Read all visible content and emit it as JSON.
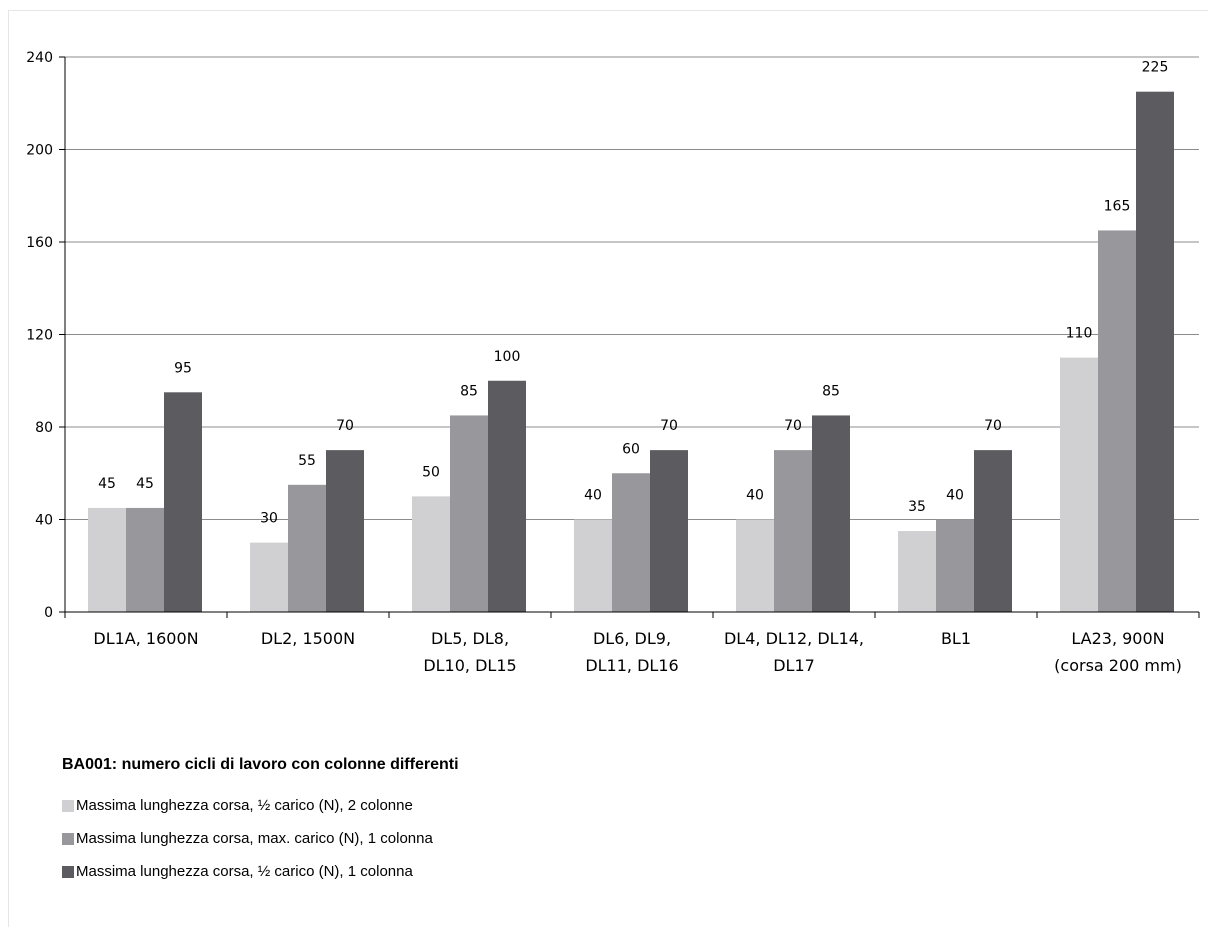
{
  "chart_data": {
    "type": "bar",
    "title": "BA001: numero cicli di lavoro con colonne differenti",
    "categories": [
      [
        "DL1A, 1600N"
      ],
      [
        "DL2, 1500N"
      ],
      [
        "DL5, DL8,",
        "DL10, DL15"
      ],
      [
        "DL6, DL9,",
        "DL11, DL16"
      ],
      [
        "DL4, DL12, DL14,",
        "DL17"
      ],
      [
        "BL1"
      ],
      [
        "LA23, 900N",
        "(corsa 200 mm)"
      ]
    ],
    "series": [
      {
        "name": "Massima lunghezza corsa, ½ carico (N), 2 colonne",
        "color": "#d0d0d2",
        "values": [
          45,
          30,
          50,
          40,
          40,
          35,
          110
        ]
      },
      {
        "name": "Massima lunghezza corsa, max. carico (N), 1 colonna",
        "color": "#98979c",
        "values": [
          45,
          55,
          85,
          60,
          70,
          40,
          165
        ]
      },
      {
        "name": "Massima lunghezza corsa, ½ carico (N), 1 colonna",
        "color": "#5c5b60",
        "values": [
          95,
          70,
          100,
          70,
          85,
          70,
          225
        ]
      }
    ],
    "yticks": [
      0,
      40,
      80,
      120,
      160,
      200,
      240
    ],
    "ylim": [
      0,
      240
    ],
    "grid": true,
    "legend_position": "bottom-left",
    "data_labels": true
  }
}
